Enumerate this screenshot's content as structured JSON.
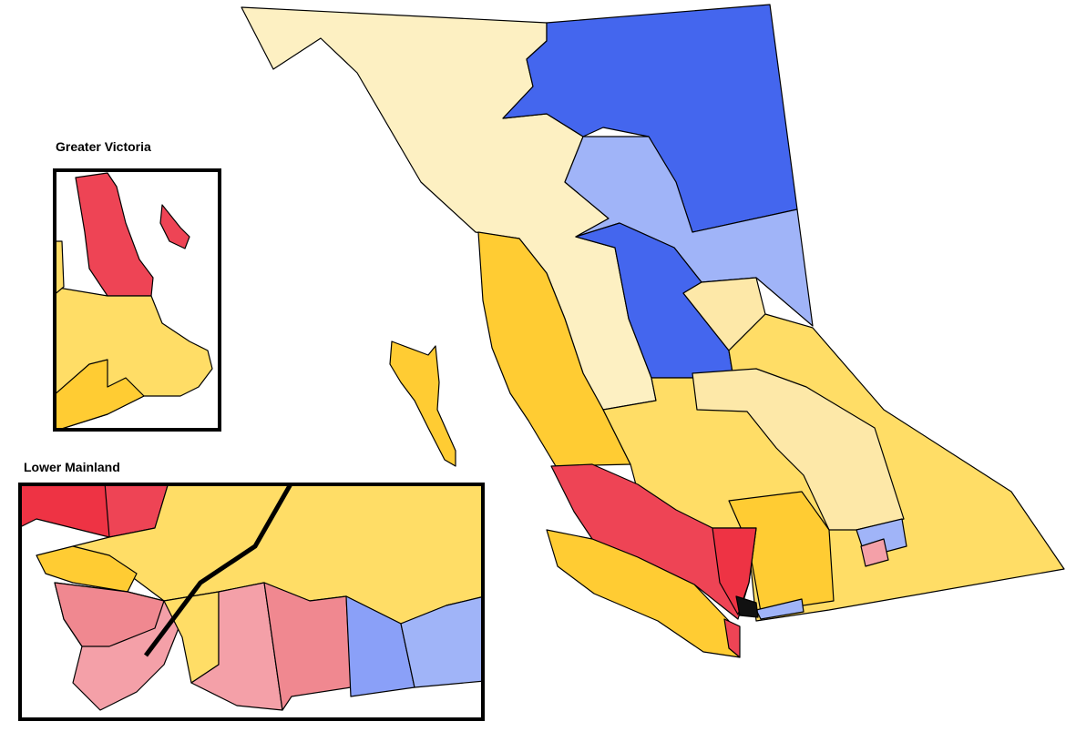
{
  "insets": [
    {
      "label": "Greater Victoria"
    },
    {
      "label": "Lower Mainland"
    }
  ]
}
